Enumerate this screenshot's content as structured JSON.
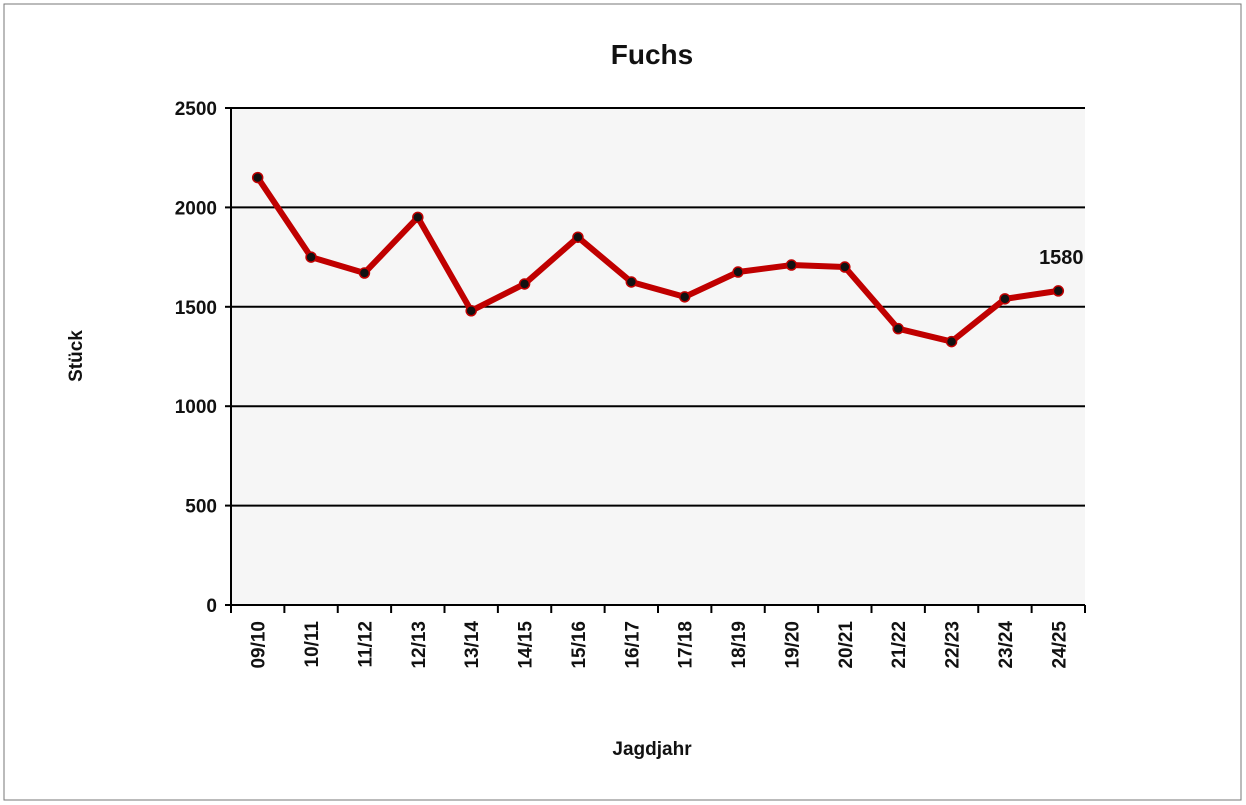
{
  "chart_data": {
    "type": "line",
    "title": "Fuchs",
    "x_label": "Jagdjahr",
    "y_label": "Stück",
    "categories": [
      "09/10",
      "10/11",
      "11/12",
      "12/13",
      "13/14",
      "14/15",
      "15/16",
      "16/17",
      "17/18",
      "18/19",
      "19/20",
      "20/21",
      "21/22",
      "22/23",
      "23/24",
      "24/25"
    ],
    "series": [
      {
        "name": "Fuchs",
        "color": "#c00000",
        "values": [
          2150,
          1750,
          1670,
          1950,
          1480,
          1615,
          1850,
          1625,
          1550,
          1675,
          1710,
          1700,
          1390,
          1325,
          1540,
          1580
        ]
      }
    ],
    "ylim": [
      0,
      2500
    ],
    "yticks": [
      0,
      500,
      1000,
      1500,
      2000,
      2500
    ],
    "grid": true
  }
}
